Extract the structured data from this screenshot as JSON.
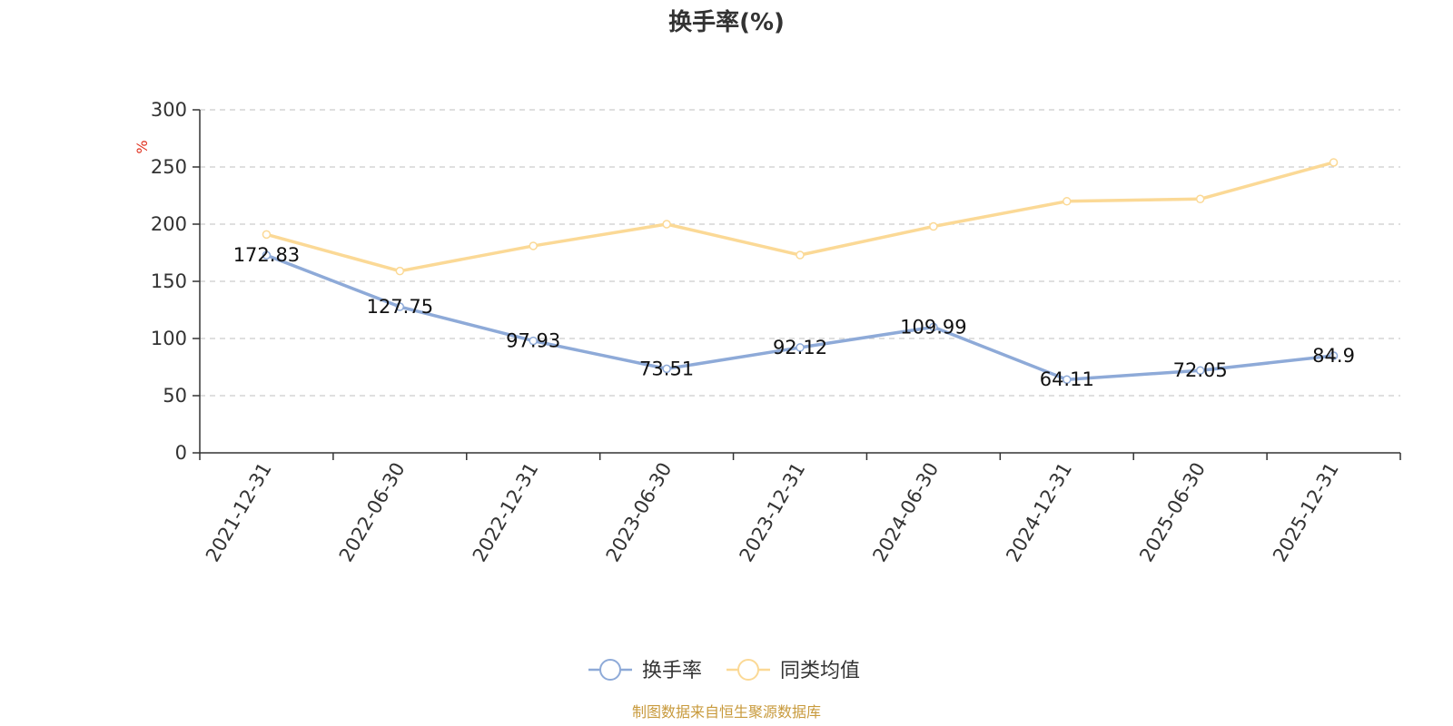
{
  "chart_data": {
    "type": "line",
    "title": "换手率(%)",
    "ylabel": "%",
    "ylim": [
      0,
      300
    ],
    "yticks": [
      0,
      50,
      100,
      150,
      200,
      250,
      300
    ],
    "grid": true,
    "categories": [
      "2021-12-31",
      "2022-06-30",
      "2022-12-31",
      "2023-06-30",
      "2023-12-31",
      "2024-06-30",
      "2024-12-31",
      "2025-06-30",
      "2025-12-31"
    ],
    "series": [
      {
        "name": "换手率",
        "color": "#8eaad8",
        "values": [
          172.83,
          127.75,
          97.93,
          73.51,
          92.12,
          109.99,
          64.11,
          72.05,
          84.9
        ],
        "labels": [
          "172.83",
          "127.75",
          "97.93",
          "73.51",
          "92.12",
          "109.99",
          "64.11",
          "72.05",
          "84.9"
        ]
      },
      {
        "name": "同类均值",
        "color": "#fbd996",
        "values": [
          191,
          159,
          181,
          200,
          173,
          198,
          220,
          222,
          254
        ]
      }
    ],
    "legend": "bottom-center",
    "source": "制图数据来自恒生聚源数据库"
  },
  "colors": {
    "unit": "#e0301e",
    "source": "#c89a3c",
    "axis": "#333333",
    "grid": "#cccccc"
  }
}
